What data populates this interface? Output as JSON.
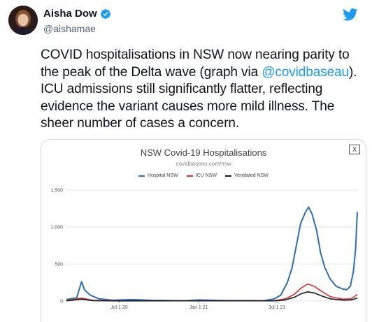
{
  "tweet": {
    "display_name": "Aisha Dow",
    "handle": "@aishamae",
    "verified": true,
    "text_before": "COVID hospitalisations in NSW now nearing parity to the peak of the Delta wave (graph via ",
    "mention": "@covidbaseau",
    "text_after": "). ICU admissions still significantly flatter, reflecting evidence the variant causes more mild illness. The sheer number of cases a concern.",
    "icons": {
      "brand": "twitter-bird-icon",
      "verified": "verified-badge-icon"
    },
    "colors": {
      "link": "#1d9bf0",
      "brand": "#1d9bf0"
    }
  },
  "media": {
    "close_label": "X"
  },
  "chart_data": {
    "type": "line",
    "title": "NSW Covid-19 Hospitalisations",
    "subtitle": "covidbaseau.com/nsw",
    "xlabel": "",
    "ylabel": "",
    "ylim": [
      0,
      1500
    ],
    "yticks": [
      "1,500",
      "1,000",
      "500",
      "0"
    ],
    "ytick_values": [
      1500,
      1000,
      500,
      0
    ],
    "xticks": [
      "Jul 1 20",
      "Jan 1 21",
      "Jul 1 21"
    ],
    "xtick_values": [
      "2020-07-01",
      "2021-01-01",
      "2021-07-01"
    ],
    "x_range": [
      "2020-03-01",
      "2022-01-03"
    ],
    "grid": true,
    "legend_position": "top",
    "series": [
      {
        "name": "Hospital NSW",
        "color": "#2c6fb4",
        "points": [
          [
            "2020-03-01",
            20
          ],
          [
            "2020-03-25",
            45
          ],
          [
            "2020-04-05",
            260
          ],
          [
            "2020-04-12",
            150
          ],
          [
            "2020-04-25",
            80
          ],
          [
            "2020-05-15",
            30
          ],
          [
            "2020-06-15",
            12
          ],
          [
            "2020-08-01",
            20
          ],
          [
            "2020-09-15",
            10
          ],
          [
            "2020-12-01",
            5
          ],
          [
            "2021-01-01",
            15
          ],
          [
            "2021-03-01",
            8
          ],
          [
            "2021-06-01",
            5
          ],
          [
            "2021-06-25",
            30
          ],
          [
            "2021-07-10",
            80
          ],
          [
            "2021-07-25",
            250
          ],
          [
            "2021-08-05",
            450
          ],
          [
            "2021-08-15",
            750
          ],
          [
            "2021-08-25",
            1050
          ],
          [
            "2021-09-05",
            1200
          ],
          [
            "2021-09-12",
            1270
          ],
          [
            "2021-09-20",
            1180
          ],
          [
            "2021-10-01",
            950
          ],
          [
            "2021-10-10",
            650
          ],
          [
            "2021-10-20",
            450
          ],
          [
            "2021-11-01",
            300
          ],
          [
            "2021-11-15",
            200
          ],
          [
            "2021-12-01",
            160
          ],
          [
            "2021-12-10",
            155
          ],
          [
            "2021-12-18",
            200
          ],
          [
            "2021-12-25",
            400
          ],
          [
            "2021-12-30",
            700
          ],
          [
            "2022-01-03",
            1200
          ]
        ]
      },
      {
        "name": "ICU NSW",
        "color": "#d9302b",
        "points": [
          [
            "2020-03-01",
            5
          ],
          [
            "2020-04-05",
            40
          ],
          [
            "2020-05-01",
            10
          ],
          [
            "2020-07-01",
            3
          ],
          [
            "2021-06-25",
            5
          ],
          [
            "2021-07-20",
            30
          ],
          [
            "2021-08-10",
            90
          ],
          [
            "2021-08-25",
            170
          ],
          [
            "2021-09-10",
            230
          ],
          [
            "2021-09-25",
            200
          ],
          [
            "2021-10-10",
            140
          ],
          [
            "2021-11-01",
            60
          ],
          [
            "2021-12-01",
            25
          ],
          [
            "2021-12-20",
            30
          ],
          [
            "2022-01-03",
            90
          ]
        ]
      },
      {
        "name": "Ventilated NSW",
        "color": "#1a1a1a",
        "points": [
          [
            "2020-03-01",
            3
          ],
          [
            "2020-04-05",
            25
          ],
          [
            "2020-05-01",
            6
          ],
          [
            "2020-07-01",
            2
          ],
          [
            "2021-06-25",
            3
          ],
          [
            "2021-07-20",
            15
          ],
          [
            "2021-08-10",
            50
          ],
          [
            "2021-08-25",
            95
          ],
          [
            "2021-09-10",
            125
          ],
          [
            "2021-09-25",
            110
          ],
          [
            "2021-10-10",
            75
          ],
          [
            "2021-11-01",
            30
          ],
          [
            "2021-12-01",
            12
          ],
          [
            "2021-12-20",
            15
          ],
          [
            "2022-01-03",
            40
          ]
        ]
      }
    ]
  }
}
